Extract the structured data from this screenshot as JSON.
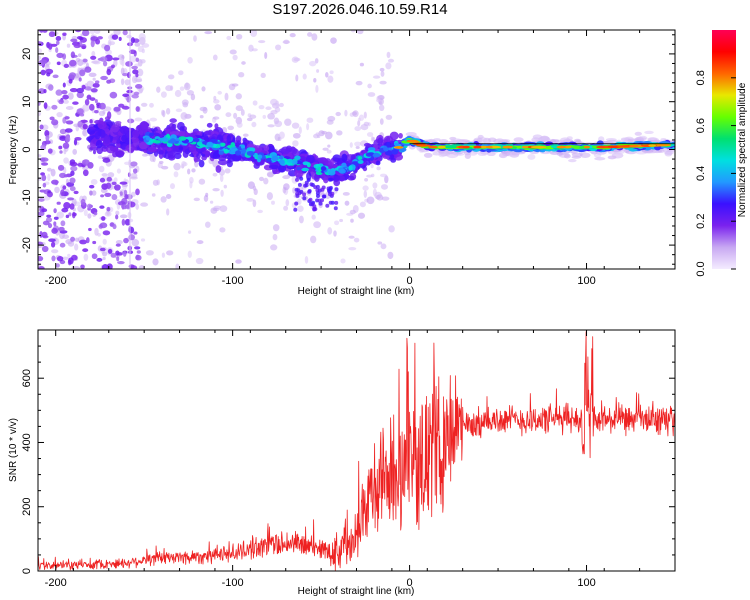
{
  "chart_data": [
    {
      "type": "heatmap",
      "title": "S197.2026.046.10.59.R14",
      "xlabel": "Height of straight line (km)",
      "ylabel": "Frequency (Hz)",
      "xlim": [
        -210,
        150
      ],
      "ylim": [
        -25,
        25
      ],
      "xticks": [
        -200,
        -100,
        0,
        100
      ],
      "yticks": [
        -20,
        -10,
        0,
        10,
        20
      ],
      "colorbar": {
        "label": "Normalized spectral amplitude",
        "range": [
          0.0,
          1.0
        ],
        "ticks": [
          0.0,
          0.2,
          0.4,
          0.6,
          0.8
        ],
        "tick_labels": [
          "0.0",
          "0.2",
          "0.4",
          "0.6",
          "0.8"
        ],
        "colors": [
          "#f4ecff",
          "#c8a8f2",
          "#7a22ee",
          "#3a10ff",
          "#2299ff",
          "#00e0e0",
          "#00e070",
          "#66ff00",
          "#e8e800",
          "#ff6600",
          "#ff0000",
          "#ff0055"
        ]
      },
      "ridge": {
        "x": [
          -175,
          -160,
          -140,
          -120,
          -100,
          -80,
          -60,
          -45,
          -35,
          -25,
          -15,
          -5,
          0,
          10,
          40,
          80,
          110,
          150
        ],
        "frequency": [
          3,
          2.5,
          2,
          1.5,
          0,
          -1.5,
          -3,
          -4.5,
          -4,
          -1.5,
          0,
          0.5,
          2,
          0.5,
          0.5,
          0.5,
          0.5,
          1
        ]
      }
    },
    {
      "type": "line",
      "xlabel": "Height of straight line (km)",
      "ylabel": "SNR (10 * v/v)",
      "xlim": [
        -210,
        150
      ],
      "ylim": [
        0,
        750
      ],
      "xticks": [
        -200,
        -100,
        0,
        100
      ],
      "yticks": [
        0,
        200,
        400,
        600
      ],
      "series": [
        {
          "name": "SNR",
          "color": "#ee2222",
          "x": [
            -210,
            -180,
            -160,
            -150,
            -140,
            -120,
            -100,
            -90,
            -80,
            -70,
            -60,
            -50,
            -40,
            -30,
            -20,
            -10,
            0,
            10,
            20,
            30,
            50,
            70,
            90,
            98,
            100,
            102,
            106,
            120,
            150
          ],
          "y": [
            15,
            20,
            25,
            35,
            40,
            45,
            55,
            70,
            80,
            90,
            80,
            70,
            60,
            140,
            250,
            300,
            330,
            360,
            410,
            450,
            470,
            470,
            475,
            470,
            500,
            480,
            470,
            470,
            470
          ]
        }
      ]
    }
  ]
}
